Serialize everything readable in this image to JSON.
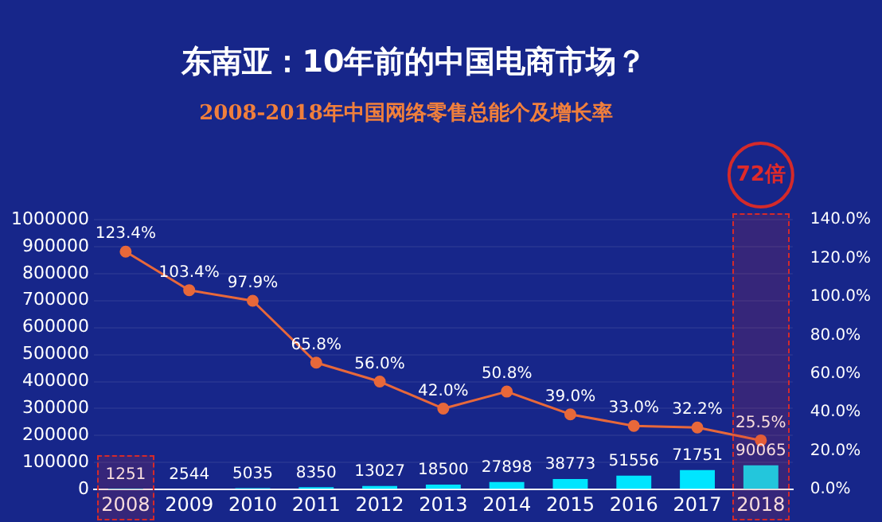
{
  "chart_data": {
    "type": "bar",
    "title": "东南亚：10年前的中国电商市场？",
    "subtitle": "2008-2018年中国网络零售总能个及增长率",
    "categories": [
      "2008",
      "2009",
      "2010",
      "2011",
      "2012",
      "2013",
      "2014",
      "2015",
      "2016",
      "2017",
      "2018"
    ],
    "series": [
      {
        "color": "#00e5ff",
        "values": [
          1251,
          2544,
          5035,
          8350,
          13027,
          18500,
          27898,
          38773,
          51556,
          71751,
          90065
        ]
      },
      {
        "type": "line",
        "axis": "y2",
        "color": "#e8683a",
        "values": [
          123.4,
          103.4,
          97.9,
          65.8,
          56.0,
          42.0,
          50.8,
          39.0,
          33.0,
          32.2,
          25.5
        ],
        "value_labels": [
          "123.4%",
          "103.4%",
          "97.9%",
          "65.8%",
          "56.0%",
          "42.0%",
          "50.8%",
          "39.0%",
          "33.0%",
          "32.2%",
          "25.5%"
        ]
      }
    ],
    "marker": "circle",
    "data_labels": true,
    "ylim": [
      0,
      1000000
    ],
    "yticks": [
      0,
      100000,
      200000,
      300000,
      400000,
      500000,
      600000,
      700000,
      800000,
      900000,
      1000000
    ],
    "y2lim": [
      0,
      140
    ],
    "y2ticks": [
      {
        "value": 0,
        "label": "0.0%"
      },
      {
        "value": 20,
        "label": "20.0%"
      },
      {
        "value": 40,
        "label": "40.0%"
      },
      {
        "value": 60,
        "label": "60.0%"
      },
      {
        "value": 80,
        "label": "80.0%"
      },
      {
        "value": 100,
        "label": "100.0%"
      },
      {
        "value": 120,
        "label": "120.0%"
      },
      {
        "value": 140,
        "label": "140.0%"
      }
    ],
    "grid": "y",
    "legend": false,
    "bands": [
      {
        "axis": "x",
        "from": "2008",
        "to": "2008",
        "color": "#d42a2a"
      },
      {
        "axis": "x",
        "from": "2018",
        "to": "2018",
        "color": "#d42a2a"
      }
    ],
    "annotations": [
      "72倍"
    ]
  }
}
